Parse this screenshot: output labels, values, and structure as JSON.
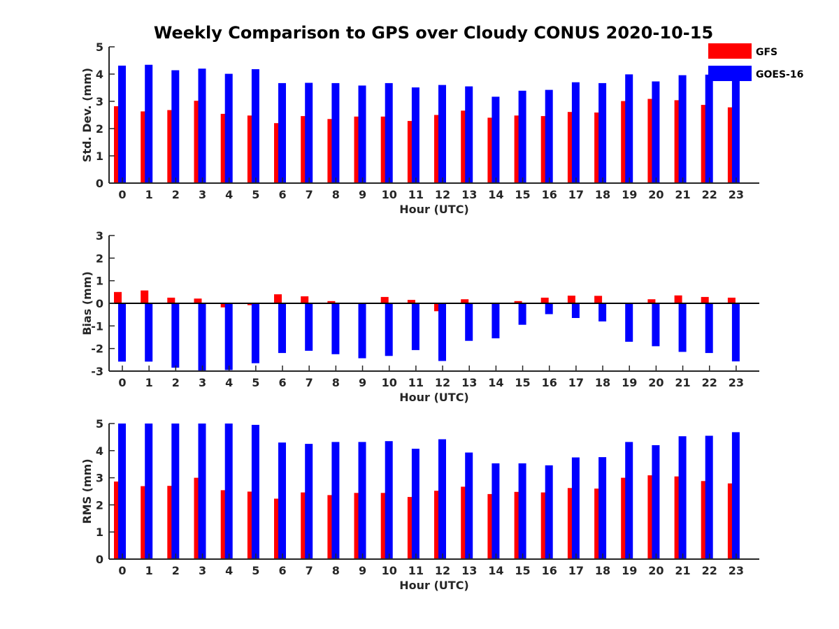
{
  "title": "Weekly Comparison to GPS over Cloudy CONUS 2020-10-15",
  "colors": {
    "GFS": "#ff0000",
    "GOES-16": "#0000ff",
    "axis": "#262626"
  },
  "legend": {
    "placement": "top-right",
    "entries": [
      "GFS",
      "GOES-16"
    ]
  },
  "chart_data": [
    {
      "type": "bar",
      "xlabel": "Hour (UTC)",
      "ylabel": "Std. Dev. (mm)",
      "ylim": [
        0,
        5
      ],
      "yticks": [
        0,
        1,
        2,
        3,
        4,
        5
      ],
      "categories": [
        "0",
        "1",
        "2",
        "3",
        "4",
        "5",
        "6",
        "7",
        "8",
        "9",
        "10",
        "11",
        "12",
        "13",
        "14",
        "15",
        "16",
        "17",
        "18",
        "19",
        "20",
        "21",
        "22",
        "23"
      ],
      "series": [
        {
          "name": "GFS",
          "values": [
            2.82,
            2.63,
            2.68,
            3.02,
            2.54,
            2.48,
            2.2,
            2.46,
            2.35,
            2.44,
            2.44,
            2.28,
            2.5,
            2.66,
            2.4,
            2.48,
            2.46,
            2.61,
            2.59,
            3.01,
            3.09,
            3.04,
            2.87,
            2.78
          ]
        },
        {
          "name": "GOES-16",
          "values": [
            4.31,
            4.34,
            4.14,
            4.2,
            4.01,
            4.18,
            3.67,
            3.68,
            3.67,
            3.58,
            3.67,
            3.51,
            3.6,
            3.55,
            3.17,
            3.39,
            3.42,
            3.7,
            3.67,
            3.99,
            3.73,
            3.96,
            3.98,
            3.9
          ]
        }
      ]
    },
    {
      "type": "bar",
      "xlabel": "Hour (UTC)",
      "ylabel": "Bias (mm)",
      "ylim": [
        -3,
        3
      ],
      "yticks": [
        -3,
        -2,
        -1,
        0,
        1,
        2,
        3
      ],
      "zero_line": true,
      "categories": [
        "0",
        "1",
        "2",
        "3",
        "4",
        "5",
        "6",
        "7",
        "8",
        "9",
        "10",
        "11",
        "12",
        "13",
        "14",
        "15",
        "16",
        "17",
        "18",
        "19",
        "20",
        "21",
        "22",
        "23"
      ],
      "series": [
        {
          "name": "GFS",
          "values": [
            0.5,
            0.57,
            0.25,
            0.21,
            -0.18,
            -0.08,
            0.4,
            0.31,
            0.1,
            0.0,
            0.28,
            0.15,
            -0.35,
            0.18,
            0.03,
            0.1,
            0.25,
            0.34,
            0.33,
            -0.03,
            0.18,
            0.35,
            0.28,
            0.25
          ]
        },
        {
          "name": "GOES-16",
          "values": [
            -2.58,
            -2.58,
            -2.85,
            -3.0,
            -2.95,
            -2.65,
            -2.2,
            -2.1,
            -2.25,
            -2.43,
            -2.33,
            -2.07,
            -2.55,
            -1.66,
            -1.55,
            -0.95,
            -0.48,
            -0.65,
            -0.8,
            -1.7,
            -1.9,
            -2.15,
            -2.2,
            -2.57
          ]
        }
      ]
    },
    {
      "type": "bar",
      "xlabel": "Hour (UTC)",
      "ylabel": "RMS (mm)",
      "ylim": [
        0,
        5
      ],
      "yticks": [
        0,
        1,
        2,
        3,
        4,
        5
      ],
      "categories": [
        "0",
        "1",
        "2",
        "3",
        "4",
        "5",
        "6",
        "7",
        "8",
        "9",
        "10",
        "11",
        "12",
        "13",
        "14",
        "15",
        "16",
        "17",
        "18",
        "19",
        "20",
        "21",
        "22",
        "23"
      ],
      "series": [
        {
          "name": "GFS",
          "values": [
            2.86,
            2.69,
            2.7,
            3.0,
            2.54,
            2.49,
            2.23,
            2.46,
            2.36,
            2.44,
            2.44,
            2.29,
            2.52,
            2.67,
            2.4,
            2.48,
            2.46,
            2.62,
            2.6,
            3.0,
            3.09,
            3.05,
            2.88,
            2.79
          ]
        },
        {
          "name": "GOES-16",
          "values": [
            5.0,
            5.0,
            5.0,
            5.0,
            5.0,
            4.95,
            4.3,
            4.25,
            4.32,
            4.32,
            4.35,
            4.07,
            4.42,
            3.93,
            3.53,
            3.53,
            3.46,
            3.75,
            3.76,
            4.32,
            4.2,
            4.53,
            4.55,
            4.68
          ]
        }
      ]
    }
  ]
}
